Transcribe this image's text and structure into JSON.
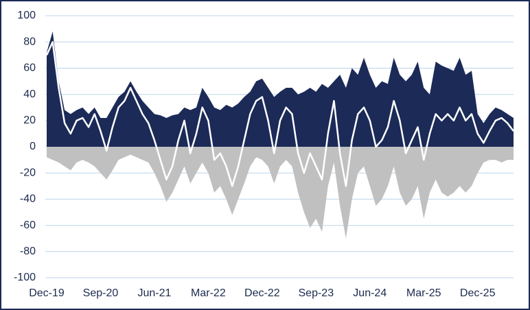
{
  "chart_data": {
    "type": "area",
    "categories": [
      "Dec-19",
      null,
      null,
      null,
      null,
      null,
      null,
      null,
      null,
      "Sep-20",
      null,
      null,
      null,
      null,
      null,
      null,
      null,
      null,
      "Jun-21",
      null,
      null,
      null,
      null,
      null,
      null,
      null,
      null,
      "Mar-22",
      null,
      null,
      null,
      null,
      null,
      null,
      null,
      null,
      "Dec-22",
      null,
      null,
      null,
      null,
      null,
      null,
      null,
      null,
      "Sep-23",
      null,
      null,
      null,
      null,
      null,
      null,
      null,
      null,
      "Jun-24",
      null,
      null,
      null,
      null,
      null,
      null,
      null,
      null,
      "Mar-25",
      null,
      null,
      null,
      null,
      null,
      null,
      null,
      null,
      "Dec-25",
      null,
      null,
      null,
      null,
      null,
      null
    ],
    "series": [
      {
        "color": "#c0c0c0",
        "kind": "area",
        "values": [
          -8,
          -10,
          -12,
          -15,
          -18,
          -12,
          -10,
          -12,
          -15,
          -20,
          -25,
          -18,
          -10,
          -8,
          -6,
          -8,
          -10,
          -12,
          -20,
          -30,
          -42,
          -35,
          -25,
          -15,
          -28,
          -20,
          -12,
          -20,
          -35,
          -30,
          -40,
          -52,
          -40,
          -28,
          -15,
          -8,
          -10,
          -15,
          -28,
          -15,
          -10,
          -15,
          -35,
          -50,
          -62,
          -55,
          -65,
          -30,
          -12,
          -45,
          -70,
          -40,
          -20,
          -15,
          -30,
          -45,
          -40,
          -30,
          -15,
          -35,
          -45,
          -40,
          -30,
          -55,
          -35,
          -25,
          -35,
          -38,
          -35,
          -30,
          -35,
          -30,
          -20,
          -12,
          -10,
          -10,
          -12,
          -10,
          -10
        ]
      },
      {
        "color": "#1b2a57",
        "kind": "area",
        "values": [
          72,
          88,
          50,
          28,
          25,
          28,
          30,
          25,
          30,
          22,
          22,
          30,
          38,
          42,
          50,
          42,
          35,
          30,
          25,
          24,
          22,
          24,
          25,
          30,
          28,
          30,
          45,
          38,
          30,
          28,
          32,
          30,
          33,
          38,
          42,
          50,
          52,
          45,
          38,
          42,
          45,
          45,
          40,
          42,
          45,
          42,
          48,
          45,
          50,
          55,
          45,
          60,
          55,
          68,
          55,
          45,
          50,
          48,
          68,
          55,
          50,
          55,
          65,
          45,
          40,
          65,
          62,
          60,
          58,
          68,
          55,
          58,
          25,
          18,
          25,
          30,
          28,
          25,
          22
        ]
      },
      {
        "color": "#ffffff",
        "kind": "line",
        "values": [
          70,
          80,
          45,
          18,
          10,
          20,
          22,
          15,
          25,
          12,
          -3,
          15,
          30,
          35,
          45,
          35,
          25,
          18,
          5,
          -10,
          -25,
          -15,
          5,
          20,
          -5,
          10,
          30,
          20,
          -10,
          -5,
          -15,
          -30,
          -15,
          5,
          25,
          35,
          38,
          20,
          -5,
          20,
          30,
          25,
          -5,
          -20,
          -5,
          -15,
          -25,
          10,
          35,
          -5,
          -30,
          5,
          25,
          30,
          20,
          0,
          5,
          15,
          35,
          20,
          -5,
          5,
          15,
          -10,
          10,
          25,
          20,
          25,
          20,
          30,
          20,
          25,
          10,
          3,
          12,
          20,
          22,
          18,
          12
        ]
      }
    ],
    "ylim": [
      -100,
      100
    ],
    "yticks": [
      -100,
      -80,
      -60,
      -40,
      -20,
      0,
      20,
      40,
      60,
      80,
      100
    ],
    "grid": true
  }
}
